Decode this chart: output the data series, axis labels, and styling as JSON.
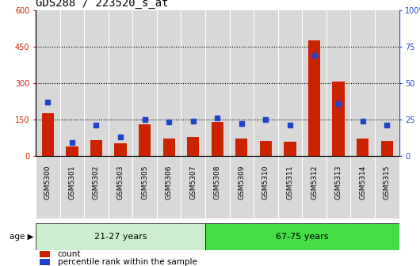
{
  "title": "GDS288 / 223520_s_at",
  "categories": [
    "GSM5300",
    "GSM5301",
    "GSM5302",
    "GSM5303",
    "GSM5305",
    "GSM5306",
    "GSM5307",
    "GSM5308",
    "GSM5309",
    "GSM5310",
    "GSM5311",
    "GSM5312",
    "GSM5313",
    "GSM5314",
    "GSM5315"
  ],
  "counts": [
    175,
    38,
    65,
    52,
    128,
    72,
    78,
    138,
    70,
    62,
    58,
    478,
    308,
    72,
    62
  ],
  "pct_vals": [
    37,
    9,
    21,
    13,
    25,
    23,
    24,
    26,
    22,
    25,
    21,
    69,
    36,
    24,
    21
  ],
  "group1_label": "21-27 years",
  "group2_label": "67-75 years",
  "g1_count": 7,
  "g2_count": 8,
  "ylim_left": [
    0,
    600
  ],
  "ylim_right": [
    0,
    100
  ],
  "yticks_left": [
    0,
    150,
    300,
    450,
    600
  ],
  "yticks_right": [
    0,
    25,
    50,
    75,
    100
  ],
  "ytick_labels_right": [
    "0",
    "25",
    "50",
    "75",
    "100%"
  ],
  "bar_color": "#cc2200",
  "dot_color": "#2244cc",
  "group1_bg": "#cceecc",
  "group2_bg": "#44dd44",
  "col_bg": "#d8d8d8",
  "plot_bg": "#ffffff",
  "legend_count_label": "count",
  "legend_pct_label": "percentile rank within the sample",
  "title_fontsize": 10,
  "tick_fontsize": 7,
  "xtick_fontsize": 6.5,
  "bar_width": 0.5,
  "dot_size": 4
}
